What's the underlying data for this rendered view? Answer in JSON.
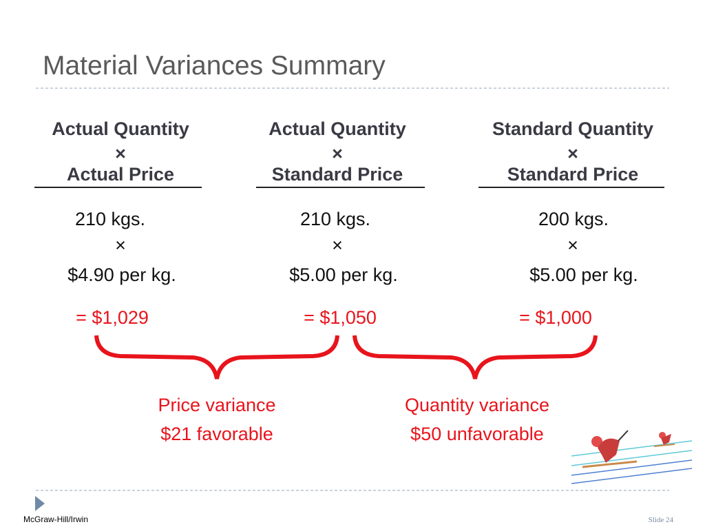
{
  "title": "Material Variances Summary",
  "columns": [
    {
      "heading": "Actual Quantity",
      "operator": "×",
      "subheading": "Actual Price",
      "quantity": "210 kgs.",
      "times": "×",
      "price": "$4.90 per kg.",
      "total": "= $1,029"
    },
    {
      "heading": "Actual Quantity",
      "operator": "×",
      "subheading": "Standard Price",
      "quantity": "210 kgs.",
      "times": "×",
      "price": "$5.00 per kg.",
      "total": "= $1,050"
    },
    {
      "heading": "Standard Quantity",
      "operator": "×",
      "subheading": "Standard Price",
      "quantity": "200 kgs.",
      "times": "×",
      "price": "$5.00 per kg.",
      "total": "= $1,000"
    }
  ],
  "variances": [
    {
      "label": "Price variance",
      "amount": "$21 favorable"
    },
    {
      "label": "Quantity variance",
      "amount": "$50 unfavorable"
    }
  ],
  "footer": {
    "publisher": "McGraw-Hill/Irwin",
    "slide": "Slide 24"
  }
}
